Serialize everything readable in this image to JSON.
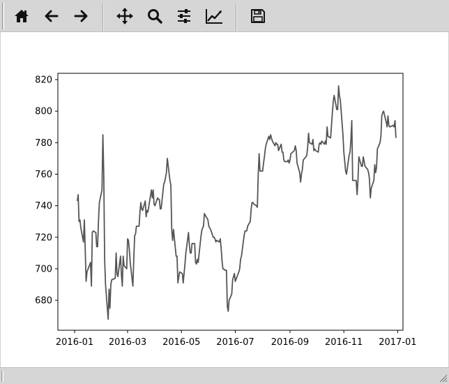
{
  "toolbar": {
    "tools": [
      {
        "name": "home-button",
        "icon": "home-icon"
      },
      {
        "name": "back-button",
        "icon": "arrow-left-icon"
      },
      {
        "name": "forward-button",
        "icon": "arrow-right-icon"
      },
      {
        "name": "pan-button",
        "icon": "move-icon"
      },
      {
        "name": "zoom-button",
        "icon": "magnifier-icon"
      },
      {
        "name": "configure-subplots-button",
        "icon": "sliders-icon"
      },
      {
        "name": "edit-axis-button",
        "icon": "line-chart-icon"
      },
      {
        "name": "save-button",
        "icon": "floppy-disk-icon"
      }
    ]
  },
  "status": {
    "text": ""
  },
  "colors": {
    "line": "#555555",
    "toolbar_bg": "#d6d6d6"
  },
  "chart_data": {
    "type": "line",
    "title": "",
    "xlabel": "",
    "ylabel": "",
    "xlim": [
      "2015-12-13",
      "2017-01-07"
    ],
    "ylim": [
      661,
      824
    ],
    "xticks": [
      "2016-01",
      "2016-03",
      "2016-05",
      "2016-07",
      "2016-09",
      "2016-11",
      "2017-01"
    ],
    "yticks": [
      680,
      700,
      720,
      740,
      760,
      780,
      800,
      820
    ],
    "grid": false,
    "series": [
      {
        "x": [
          "2016-01-04",
          "2016-01-05",
          "2016-01-06",
          "2016-01-07",
          "2016-01-08",
          "2016-01-11",
          "2016-01-12",
          "2016-01-13",
          "2016-01-14",
          "2016-01-15",
          "2016-01-19",
          "2016-01-20",
          "2016-01-21",
          "2016-01-22",
          "2016-01-25",
          "2016-01-26",
          "2016-01-27",
          "2016-01-28",
          "2016-01-29",
          "2016-02-01",
          "2016-02-02",
          "2016-02-03",
          "2016-02-04",
          "2016-02-05",
          "2016-02-08",
          "2016-02-09",
          "2016-02-10",
          "2016-02-11",
          "2016-02-12",
          "2016-02-16",
          "2016-02-17",
          "2016-02-18",
          "2016-02-19",
          "2016-02-22",
          "2016-02-23",
          "2016-02-24",
          "2016-02-25",
          "2016-02-26",
          "2016-02-29",
          "2016-03-01",
          "2016-03-02",
          "2016-03-03",
          "2016-03-04",
          "2016-03-07",
          "2016-03-08",
          "2016-03-09",
          "2016-03-10",
          "2016-03-11",
          "2016-03-14",
          "2016-03-15",
          "2016-03-16",
          "2016-03-17",
          "2016-03-18",
          "2016-03-21",
          "2016-03-22",
          "2016-03-23",
          "2016-03-24",
          "2016-03-28",
          "2016-03-29",
          "2016-03-30",
          "2016-03-31",
          "2016-04-01",
          "2016-04-04",
          "2016-04-05",
          "2016-04-06",
          "2016-04-07",
          "2016-04-08",
          "2016-04-11",
          "2016-04-12",
          "2016-04-13",
          "2016-04-14",
          "2016-04-15",
          "2016-04-18",
          "2016-04-19",
          "2016-04-20",
          "2016-04-21",
          "2016-04-22",
          "2016-04-25",
          "2016-04-26",
          "2016-04-27",
          "2016-04-28",
          "2016-04-29",
          "2016-05-02",
          "2016-05-03",
          "2016-05-04",
          "2016-05-05",
          "2016-05-06",
          "2016-05-09",
          "2016-05-10",
          "2016-05-11",
          "2016-05-12",
          "2016-05-13",
          "2016-05-16",
          "2016-05-17",
          "2016-05-18",
          "2016-05-19",
          "2016-05-20",
          "2016-05-23",
          "2016-05-24",
          "2016-05-25",
          "2016-05-26",
          "2016-05-27",
          "2016-05-31",
          "2016-06-01",
          "2016-06-02",
          "2016-06-03",
          "2016-06-06",
          "2016-06-07",
          "2016-06-08",
          "2016-06-09",
          "2016-06-10",
          "2016-06-13",
          "2016-06-14",
          "2016-06-15",
          "2016-06-16",
          "2016-06-17",
          "2016-06-20",
          "2016-06-21",
          "2016-06-22",
          "2016-06-23",
          "2016-06-24",
          "2016-06-27",
          "2016-06-28",
          "2016-06-29",
          "2016-06-30",
          "2016-07-01",
          "2016-07-05",
          "2016-07-06",
          "2016-07-07",
          "2016-07-08",
          "2016-07-11",
          "2016-07-12",
          "2016-07-13",
          "2016-07-14",
          "2016-07-15",
          "2016-07-18",
          "2016-07-19",
          "2016-07-20",
          "2016-07-21",
          "2016-07-22",
          "2016-07-25",
          "2016-07-26",
          "2016-07-27",
          "2016-07-28",
          "2016-07-29",
          "2016-08-01",
          "2016-08-02",
          "2016-08-03",
          "2016-08-04",
          "2016-08-05",
          "2016-08-08",
          "2016-08-09",
          "2016-08-10",
          "2016-08-11",
          "2016-08-12",
          "2016-08-15",
          "2016-08-16",
          "2016-08-17",
          "2016-08-18",
          "2016-08-19",
          "2016-08-22",
          "2016-08-23",
          "2016-08-24",
          "2016-08-25",
          "2016-08-26",
          "2016-08-29",
          "2016-08-30",
          "2016-08-31",
          "2016-09-01",
          "2016-09-02",
          "2016-09-06",
          "2016-09-07",
          "2016-09-08",
          "2016-09-09",
          "2016-09-12",
          "2016-09-13",
          "2016-09-14",
          "2016-09-15",
          "2016-09-16",
          "2016-09-19",
          "2016-09-20",
          "2016-09-21",
          "2016-09-22",
          "2016-09-23",
          "2016-09-26",
          "2016-09-27",
          "2016-09-28",
          "2016-09-29",
          "2016-09-30",
          "2016-10-03",
          "2016-10-04",
          "2016-10-05",
          "2016-10-06",
          "2016-10-07",
          "2016-10-10",
          "2016-10-11",
          "2016-10-12",
          "2016-10-13",
          "2016-10-14",
          "2016-10-17",
          "2016-10-18",
          "2016-10-19",
          "2016-10-20",
          "2016-10-21",
          "2016-10-24",
          "2016-10-25",
          "2016-10-26",
          "2016-10-27",
          "2016-10-28",
          "2016-10-31",
          "2016-11-01",
          "2016-11-02",
          "2016-11-03",
          "2016-11-04",
          "2016-11-07",
          "2016-11-08",
          "2016-11-09",
          "2016-11-10",
          "2016-11-11",
          "2016-11-14",
          "2016-11-15",
          "2016-11-16",
          "2016-11-17",
          "2016-11-18",
          "2016-11-21",
          "2016-11-22",
          "2016-11-23",
          "2016-11-25",
          "2016-11-28",
          "2016-11-29",
          "2016-11-30",
          "2016-12-01",
          "2016-12-02",
          "2016-12-05",
          "2016-12-06",
          "2016-12-07",
          "2016-12-08",
          "2016-12-09",
          "2016-12-12",
          "2016-12-13",
          "2016-12-14",
          "2016-12-15",
          "2016-12-16",
          "2016-12-19",
          "2016-12-20",
          "2016-12-21",
          "2016-12-22",
          "2016-12-23",
          "2016-12-27",
          "2016-12-28",
          "2016-12-29",
          "2016-12-30"
        ],
        "y": [
          743,
          747,
          730,
          731,
          726,
          717,
          731,
          712,
          692,
          698,
          704,
          689,
          723,
          724,
          723,
          714,
          714,
          730,
          742,
          750,
          785,
          760,
          706,
          690,
          668,
          687,
          675,
          690,
          693,
          694,
          710,
          697,
          695,
          708,
          696,
          689,
          708,
          702,
          700,
          719,
          718,
          712,
          704,
          689,
          706,
          721,
          722,
          727,
          727,
          736,
          742,
          738,
          737,
          743,
          733,
          737,
          736,
          750,
          745,
          750,
          741,
          740,
          745,
          744,
          744,
          738,
          738,
          754,
          755,
          758,
          761,
          770,
          756,
          753,
          725,
          718,
          725,
          708,
          708,
          691,
          695,
          698,
          697,
          691,
          697,
          703,
          710,
          723,
          715,
          710,
          710,
          716,
          716,
          704,
          703,
          706,
          704,
          720,
          724,
          726,
          727,
          735,
          731,
          727,
          726,
          725,
          720,
          720,
          719,
          717,
          718,
          717,
          719,
          713,
          705,
          700,
          699,
          699,
          676,
          673,
          680,
          684,
          693,
          695,
          697,
          692,
          698,
          700,
          706,
          708,
          721,
          724,
          724,
          724,
          727,
          730,
          738,
          742,
          742,
          741,
          740,
          739,
          760,
          773,
          762,
          762,
          767,
          771,
          776,
          779,
          784,
          782,
          785,
          783,
          781,
          778,
          780,
          779,
          779,
          775,
          779,
          774,
          774,
          769,
          768,
          768,
          769,
          767,
          769,
          773,
          775,
          778,
          775,
          767,
          761,
          755,
          760,
          763,
          769,
          771,
          772,
          777,
          786,
          780,
          779,
          782,
          775,
          776,
          775,
          774,
          779,
          780,
          779,
          781,
          779,
          781,
          779,
          790,
          784,
          783,
          791,
          799,
          806,
          810,
          801,
          801,
          816,
          810,
          807,
          785,
          774,
          768,
          762,
          760,
          772,
          774,
          782,
          794,
          756,
          756,
          756,
          747,
          756,
          771,
          765,
          765,
          771,
          765,
          763,
          761,
          757,
          745,
          751,
          756,
          766,
          761,
          764,
          776,
          780,
          784,
          797,
          799,
          800,
          793,
          790,
          797,
          791,
          790,
          791,
          790,
          794,
          783
        ]
      }
    ]
  }
}
